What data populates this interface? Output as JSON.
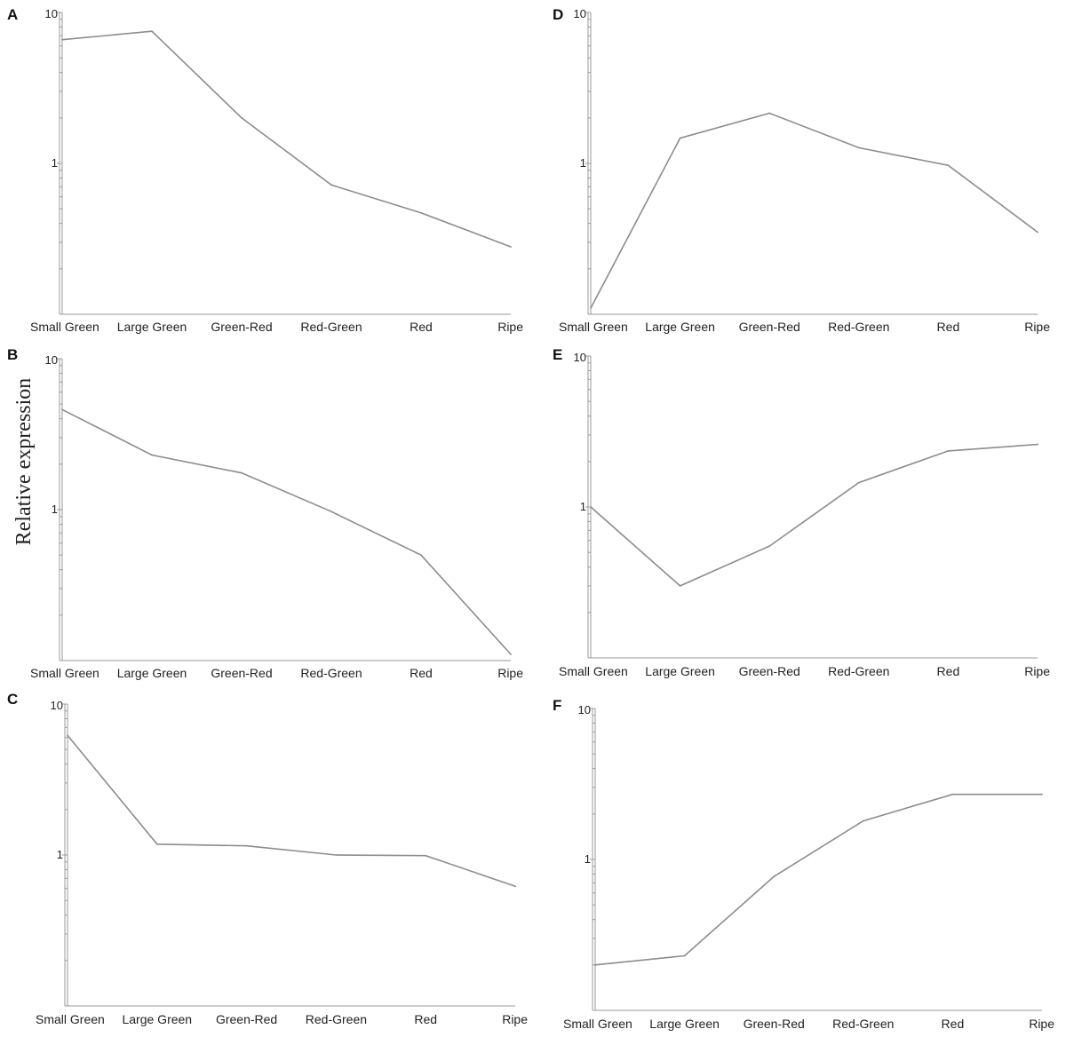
{
  "figure": {
    "ylabel": "Relative expression"
  },
  "chart_data": [
    {
      "panel": "A",
      "type": "line",
      "scale": "log",
      "ylim": [
        0.1,
        10
      ],
      "yticks": [
        "10",
        "1"
      ],
      "categories": [
        "Small Green",
        "Large Green",
        "Green-Red",
        "Red-Green",
        "Red",
        "Ripe"
      ],
      "values": [
        6.6,
        7.5,
        2.0,
        0.72,
        0.47,
        0.28
      ]
    },
    {
      "panel": "B",
      "type": "line",
      "scale": "log",
      "ylim": [
        0.1,
        10
      ],
      "yticks": [
        "10",
        "1"
      ],
      "categories": [
        "Small Green",
        "Large Green",
        "Green-Red",
        "Red-Green",
        "Red",
        "Ripe"
      ],
      "values": [
        4.6,
        2.3,
        1.75,
        0.97,
        0.5,
        0.11
      ]
    },
    {
      "panel": "C",
      "type": "line",
      "scale": "log",
      "ylim": [
        0.1,
        10
      ],
      "yticks": [
        "10",
        "1"
      ],
      "categories": [
        "Small Green",
        "Large Green",
        "Green-Red",
        "Red-Green",
        "Red",
        "Ripe"
      ],
      "values": [
        6.2,
        1.18,
        1.15,
        1.0,
        0.99,
        0.62
      ]
    },
    {
      "panel": "D",
      "type": "line",
      "scale": "log",
      "ylim": [
        0.1,
        10
      ],
      "yticks": [
        "10",
        "1"
      ],
      "categories": [
        "Small Green",
        "Large Green",
        "Green-Red",
        "Red-Green",
        "Red",
        "Ripe"
      ],
      "values": [
        0.11,
        1.47,
        2.15,
        1.27,
        0.97,
        0.35
      ]
    },
    {
      "panel": "E",
      "type": "line",
      "scale": "log",
      "ylim": [
        0.1,
        10
      ],
      "yticks": [
        "10",
        "1"
      ],
      "categories": [
        "Small Green",
        "Large Green",
        "Green-Red",
        "Red-Green",
        "Red",
        "Ripe"
      ],
      "values": [
        1.0,
        0.3,
        0.55,
        1.45,
        2.35,
        2.6
      ]
    },
    {
      "panel": "F",
      "type": "line",
      "scale": "log",
      "ylim": [
        0.1,
        10
      ],
      "yticks": [
        "10",
        "1"
      ],
      "categories": [
        "Small Green",
        "Large Green",
        "Green-Red",
        "Red-Green",
        "Red",
        "Ripe"
      ],
      "values": [
        0.2,
        0.23,
        0.77,
        1.8,
        2.7,
        2.7
      ]
    }
  ]
}
